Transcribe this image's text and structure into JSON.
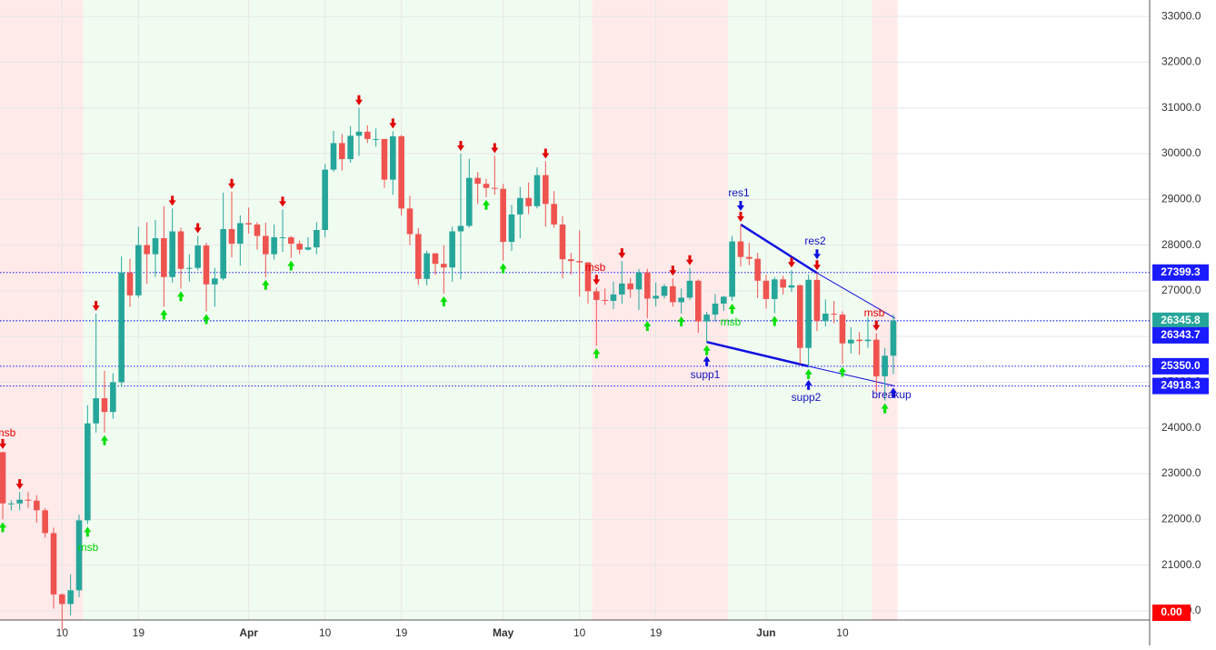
{
  "chart_data": {
    "type": "candlestick",
    "up_color": "#26a69a",
    "down_color": "#ef5350",
    "grid": true,
    "categories": [
      null,
      null,
      null,
      null,
      null,
      null,
      null,
      "10",
      null,
      null,
      null,
      null,
      null,
      null,
      null,
      null,
      "19",
      null,
      null,
      null,
      null,
      null,
      null,
      null,
      null,
      null,
      null,
      null,
      null,
      "Apr",
      null,
      null,
      null,
      null,
      null,
      null,
      null,
      null,
      "10",
      null,
      null,
      null,
      null,
      null,
      null,
      null,
      null,
      "19",
      null,
      null,
      null,
      null,
      null,
      null,
      null,
      null,
      null,
      null,
      null,
      "May",
      null,
      null,
      null,
      null,
      null,
      null,
      null,
      null,
      "10",
      null,
      null,
      null,
      null,
      null,
      null,
      null,
      null,
      "19",
      null,
      null,
      null,
      null,
      null,
      null,
      null,
      null,
      null,
      null,
      null,
      null,
      "Jun",
      null,
      null,
      null,
      null,
      null,
      null,
      null,
      null,
      "10",
      null,
      null,
      null,
      null,
      null,
      null
    ],
    "open": [
      23470,
      22350,
      22350,
      22430,
      22410,
      22200,
      21700,
      20360,
      20150,
      20450,
      21980,
      24100,
      24650,
      24350,
      25000,
      27400,
      26900,
      28000,
      27800,
      28150,
      27300,
      28300,
      27480,
      27500,
      27990,
      27140,
      27270,
      28350,
      28030,
      28480,
      28450,
      28200,
      27800,
      28170,
      28170,
      28030,
      27900,
      27950,
      28330,
      29650,
      30230,
      29880,
      30390,
      30480,
      30320,
      30320,
      29430,
      30380,
      28800,
      28240,
      27260,
      27820,
      27590,
      27510,
      28300,
      28420,
      29470,
      29340,
      29250,
      29230,
      28070,
      28670,
      29030,
      28850,
      29530,
      28900,
      28450,
      27690,
      27650,
      27620,
      26990,
      26800,
      26780,
      26920,
      27160,
      27030,
      27400,
      26830,
      26890,
      27100,
      26750,
      26850,
      27220,
      26330,
      26480,
      26720,
      26870,
      28080,
      27740,
      27700,
      27220,
      26820,
      27250,
      27070,
      27120,
      25750,
      27240,
      26340,
      26500,
      26480,
      25850,
      25930,
      25900,
      25930,
      25130,
      25580
    ],
    "high": [
      23480,
      22420,
      22600,
      22600,
      22530,
      22250,
      21820,
      20380,
      20800,
      22100,
      24500,
      26500,
      25250,
      25200,
      27750,
      27700,
      28400,
      28500,
      28550,
      28850,
      28800,
      28380,
      27800,
      28200,
      28050,
      27500,
      29150,
      29170,
      28650,
      28820,
      28500,
      28490,
      28450,
      28780,
      28200,
      28100,
      28170,
      28500,
      29770,
      30500,
      30430,
      30600,
      31000,
      30620,
      30550,
      30320,
      30490,
      30410,
      29080,
      28370,
      27880,
      27820,
      28000,
      28400,
      30000,
      29890,
      29600,
      29450,
      29950,
      29340,
      28880,
      29270,
      29370,
      29700,
      29830,
      29180,
      28630,
      27830,
      28320,
      27630,
      27070,
      27050,
      27200,
      27650,
      27280,
      27480,
      27480,
      27180,
      27150,
      27270,
      27050,
      27500,
      27250,
      26540,
      26930,
      26890,
      28200,
      28450,
      28050,
      27830,
      27350,
      27300,
      27330,
      27450,
      27140,
      27350,
      27390,
      26810,
      26780,
      26550,
      26200,
      26100,
      26420,
      26070,
      25750,
      26480
    ],
    "low": [
      22000,
      22200,
      22200,
      22250,
      21930,
      21600,
      20050,
      19570,
      19900,
      20300,
      21900,
      23900,
      23900,
      24200,
      24900,
      26650,
      26850,
      27150,
      27300,
      26650,
      27180,
      27050,
      27200,
      27450,
      26550,
      26650,
      27230,
      27730,
      27550,
      28250,
      27900,
      27300,
      27680,
      27850,
      27720,
      27800,
      27880,
      27800,
      28170,
      29600,
      29630,
      29800,
      29950,
      30230,
      30150,
      29250,
      29100,
      28650,
      28000,
      27130,
      27120,
      27350,
      26940,
      27200,
      27250,
      28380,
      28900,
      29050,
      29100,
      27660,
      27870,
      28150,
      28680,
      28800,
      28400,
      28380,
      27270,
      27350,
      26870,
      26720,
      25800,
      26690,
      26600,
      26720,
      26850,
      26580,
      26400,
      26660,
      26830,
      26650,
      26500,
      26800,
      26080,
      25870,
      26330,
      26560,
      26780,
      27530,
      27560,
      26840,
      26610,
      26510,
      26920,
      26970,
      25400,
      25350,
      26120,
      26220,
      26290,
      25400,
      25630,
      25600,
      25750,
      24800,
      24600,
      25180
    ],
    "close": [
      22350,
      22350,
      22430,
      22410,
      22200,
      21700,
      20360,
      20150,
      20450,
      21980,
      24100,
      24650,
      24350,
      25000,
      27400,
      26900,
      28000,
      27800,
      28150,
      27300,
      28300,
      27480,
      27500,
      27990,
      27140,
      27270,
      28350,
      28030,
      28480,
      28450,
      28200,
      27800,
      28170,
      28170,
      28030,
      27900,
      27950,
      28330,
      29650,
      30230,
      29880,
      30390,
      30480,
      30320,
      30320,
      29430,
      30380,
      28800,
      28240,
      27260,
      27820,
      27590,
      27510,
      28300,
      28420,
      29470,
      29340,
      29250,
      29230,
      28070,
      28670,
      29030,
      28850,
      29530,
      28900,
      28450,
      27690,
      27650,
      27620,
      26990,
      26800,
      26780,
      26920,
      27160,
      27030,
      27400,
      26830,
      26890,
      27100,
      26750,
      26850,
      27220,
      26330,
      26480,
      26720,
      26870,
      28080,
      27740,
      27700,
      27220,
      26820,
      27250,
      27070,
      27120,
      25750,
      27240,
      26340,
      26500,
      26480,
      25850,
      25930,
      25900,
      25930,
      25130,
      25580,
      26345.8
    ],
    "ylim": [
      19800,
      33360
    ],
    "yticks": [
      {
        "value": 20000,
        "label": "20000.0"
      },
      {
        "value": 21000,
        "label": "21000.0"
      },
      {
        "value": 22000,
        "label": "22000.0"
      },
      {
        "value": 23000,
        "label": "23000.0"
      },
      {
        "value": 24000,
        "label": "24000.0"
      },
      {
        "value": 25000,
        "label": "25000.0"
      },
      {
        "value": 26000,
        "label": "26000.0"
      },
      {
        "value": 27000,
        "label": "27000.0"
      },
      {
        "value": 28000,
        "label": "28000.0"
      },
      {
        "value": 29000,
        "label": "29000.0"
      },
      {
        "value": 30000,
        "label": "30000.0"
      },
      {
        "value": 31000,
        "label": "31000.0"
      },
      {
        "value": 32000,
        "label": "32000.0"
      },
      {
        "value": 33000,
        "label": "33000.0"
      }
    ],
    "price_lines": [
      {
        "value": 27399.3,
        "label": "27399.3",
        "color": "#1a1aff"
      },
      {
        "value": 26345.8,
        "label": "26345.8",
        "color": "#26a69a"
      },
      {
        "value": 26343.7,
        "label": "26343.7",
        "color": "#1a1aff"
      },
      {
        "value": 25350.0,
        "label": "25350.0",
        "color": "#1a1aff"
      },
      {
        "value": 24918.3,
        "label": "24918.3",
        "color": "#1a1aff"
      }
    ],
    "indicator_value": {
      "value": 0,
      "label": "0.00",
      "color": "#ff0000"
    },
    "trendlines": [
      [
        28450,
        27390,
        26400
      ],
      [
        25880,
        25350,
        24918.3
      ]
    ],
    "trendline_color": "#1010e0",
    "annotations": [
      {
        "text": "msb",
        "color": "#e00000"
      },
      {
        "text": "msb",
        "color": "#00d400"
      },
      {
        "text": "msb",
        "color": "#e00000"
      },
      {
        "text": "msb",
        "color": "#00d400"
      },
      {
        "text": "msb",
        "color": "#e00000"
      },
      {
        "text": "res1",
        "color": "#1010c0"
      },
      {
        "text": "res2",
        "color": "#1010c0"
      },
      {
        "text": "supp1",
        "color": "#1010c0"
      },
      {
        "text": "supp2",
        "color": "#1010c0"
      },
      {
        "text": "breakup",
        "color": "#1010c0"
      }
    ]
  }
}
